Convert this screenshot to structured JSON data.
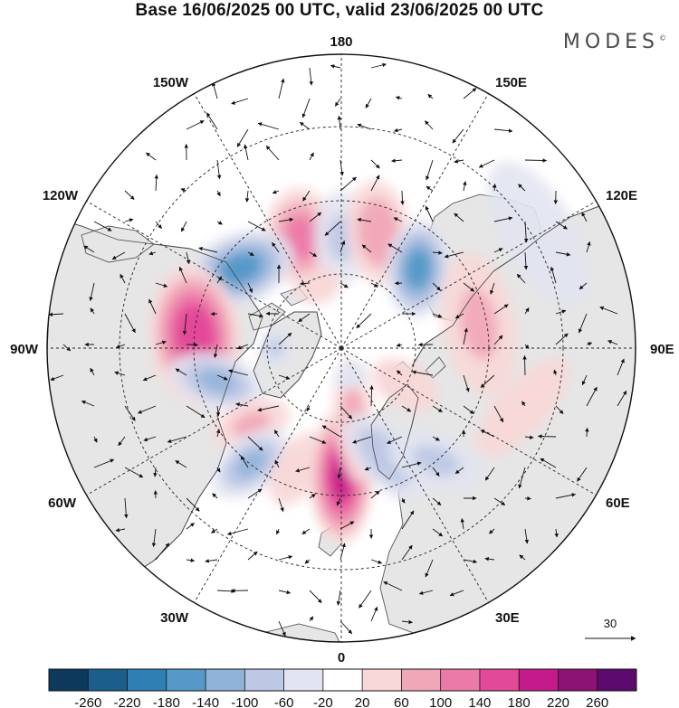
{
  "title": "Base 16/06/2025 00 UTC, valid 23/06/2025 00 UTC",
  "brand": "MODES",
  "brand_mark": "©",
  "longitude_labels": {
    "top": "180",
    "bottom": "0",
    "left": "90W",
    "right": "90E",
    "upper_left_1": "150W",
    "upper_left_2": "120W",
    "upper_right_1": "150E",
    "upper_right_2": "120E",
    "lower_left_1": "60W",
    "lower_left_2": "30W",
    "lower_right_1": "60E",
    "lower_right_2": "30E"
  },
  "wind_reference": {
    "label": "30"
  },
  "colorbar": {
    "tick_labels": [
      "-260",
      "-220",
      "-180",
      "-140",
      "-100",
      "-60",
      "-20",
      "20",
      "60",
      "100",
      "140",
      "180",
      "220",
      "260"
    ],
    "colors": [
      "#0d3a5c",
      "#1b5e8c",
      "#2f7fb5",
      "#5599c9",
      "#8fb3d9",
      "#bcc8e4",
      "#e2e4f1",
      "#ffffff",
      "#f8d8d8",
      "#f2a7b8",
      "#ec7aa8",
      "#e24998",
      "#c51b8a",
      "#8c1273",
      "#5c0a6e"
    ]
  },
  "anomaly_cells": [
    {
      "lon": -160,
      "lat": 58,
      "value": 110,
      "ext": [
        40,
        55
      ],
      "rot": 15
    },
    {
      "lon": 180,
      "lat": 60,
      "value": -60,
      "ext": [
        30,
        52
      ],
      "rot": 0
    },
    {
      "lon": 162,
      "lat": 57,
      "value": 90,
      "ext": [
        35,
        58
      ],
      "rot": -25
    },
    {
      "lon": 136,
      "lat": 60,
      "value": -150,
      "ext": [
        35,
        55
      ],
      "rot": -40
    },
    {
      "lon": -128,
      "lat": 55,
      "value": -150,
      "ext": [
        62,
        40
      ],
      "rot": 30
    },
    {
      "lon": -95,
      "lat": 50,
      "value": 170,
      "ext": [
        78,
        50
      ],
      "rot": -10
    },
    {
      "lon": 100,
      "lat": 52,
      "value": 60,
      "ext": [
        80,
        40
      ],
      "rot": 0
    },
    {
      "lon": 72,
      "lat": 38,
      "value": 40,
      "ext": [
        70,
        28
      ],
      "rot": 25
    },
    {
      "lon": 120,
      "lat": 28,
      "value": -20,
      "ext": [
        90,
        40
      ],
      "rot": 0
    },
    {
      "lon": -75,
      "lat": 55,
      "value": -100,
      "ext": [
        30,
        55
      ],
      "rot": 30
    },
    {
      "lon": -50,
      "lat": 58,
      "value": 60,
      "ext": [
        25,
        45
      ],
      "rot": 20
    },
    {
      "lon": -38,
      "lat": 50,
      "value": -100,
      "ext": [
        30,
        50
      ],
      "rot": 15
    },
    {
      "lon": -20,
      "lat": 55,
      "value": 50,
      "ext": [
        25,
        45
      ],
      "rot": 10
    },
    {
      "lon": 0,
      "lat": 55,
      "value": 180,
      "ext": [
        35,
        75
      ],
      "rot": 0
    },
    {
      "lon": 10,
      "lat": 70,
      "value": 70,
      "ext": [
        22,
        70
      ],
      "rot": 5
    },
    {
      "lon": 22,
      "lat": 58,
      "value": -90,
      "ext": [
        30,
        60
      ],
      "rot": -20
    },
    {
      "lon": 40,
      "lat": 50,
      "value": -60,
      "ext": [
        30,
        55
      ],
      "rot": -30
    },
    {
      "lon": 60,
      "lat": 70,
      "value": 30,
      "ext": [
        25,
        40
      ],
      "rot": 0
    },
    {
      "lon": -160,
      "lat": 72,
      "value": 40,
      "ext": [
        25,
        20
      ],
      "rot": 0
    },
    {
      "lon": -90,
      "lat": 72,
      "value": -60,
      "ext": [
        22,
        18
      ],
      "rot": 0
    },
    {
      "lon": 20,
      "lat": 82,
      "value": -30,
      "ext": [
        20,
        15
      ],
      "rot": 0
    }
  ]
}
